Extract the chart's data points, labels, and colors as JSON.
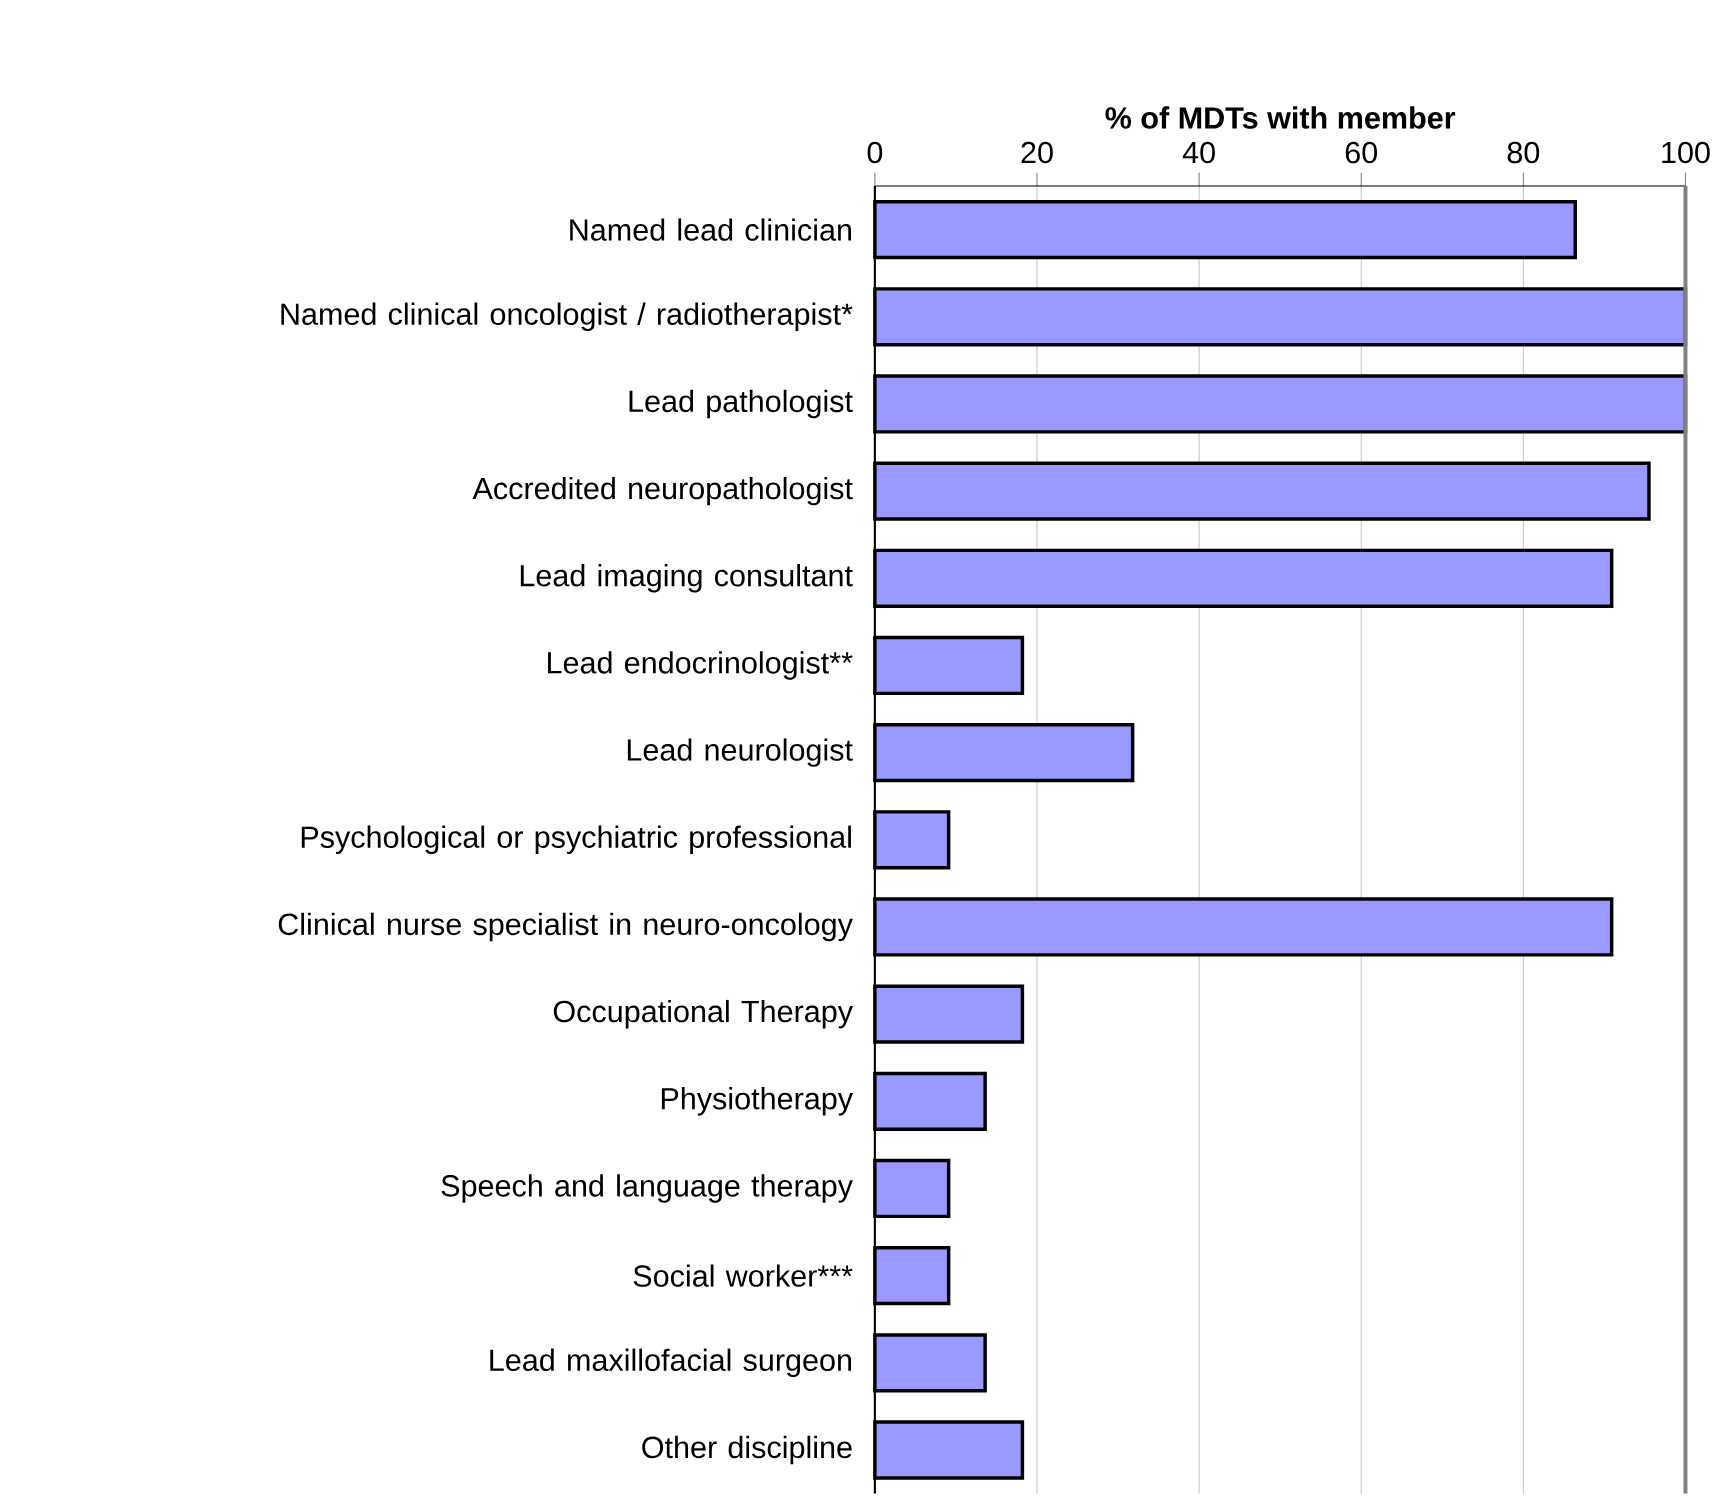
{
  "chart_data": {
    "type": "bar",
    "orientation": "horizontal",
    "xlabel": "% of MDTs with member",
    "categories": [
      "Named lead clinician",
      "Named clinical oncologist / radiotherapist*",
      "Lead pathologist",
      "Accredited neuropathologist",
      "Lead imaging consultant",
      "Lead endocrinologist**",
      "Lead neurologist",
      "Psychological or psychiatric professional",
      "Clinical nurse specialist in neuro-oncology",
      "Occupational Therapy",
      "Physiotherapy",
      "Speech and language therapy",
      "Social worker***",
      "Lead maxillofacial surgeon",
      "Other discipline"
    ],
    "values": [
      86.4,
      100,
      100,
      95.5,
      90.9,
      18.2,
      31.8,
      9.1,
      90.9,
      18.2,
      13.6,
      9.1,
      9.1,
      13.6,
      18.2
    ],
    "color": "#9999ff",
    "xlim": [
      0,
      100
    ],
    "xticks": [
      0,
      20,
      40,
      60,
      80,
      100
    ],
    "grid": "x"
  }
}
